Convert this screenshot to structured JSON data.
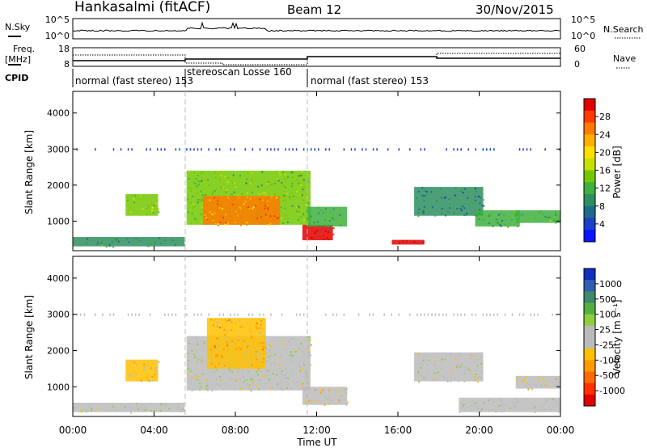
{
  "header": {
    "station": "Hankasalmi (fitACF)",
    "beam": "Beam 12",
    "date": "30/Nov/2015"
  },
  "noise_panel": {
    "left_label": "N.Sky",
    "left_ticks": [
      "10^5",
      "10^0"
    ],
    "right_label": "N.Search",
    "right_ticks": [
      "10^5",
      "10^0"
    ]
  },
  "freq_panel": {
    "left_label_top": "Freq.",
    "left_label_bottom": "[MHz]",
    "left_ticks": [
      "18",
      "8"
    ],
    "right_label": "Nave",
    "right_ticks": [
      "60",
      "0"
    ]
  },
  "cpid": {
    "label": "CPID",
    "segments": [
      {
        "text": "normal (fast stereo) 153",
        "start": 0,
        "end": 5.5
      },
      {
        "text": "stereoscan Losse 160",
        "start": 5.5,
        "end": 11.5
      },
      {
        "text": "normal (fast stereo) 153",
        "start": 11.5,
        "end": 24
      }
    ]
  },
  "power_colorbar": {
    "label": "Power [dB]",
    "ticks": [
      "28",
      "24",
      "20",
      "16",
      "12",
      "8",
      "4"
    ],
    "colors": [
      "#e00000",
      "#ff3a00",
      "#ff7a00",
      "#ffb000",
      "#ffe000",
      "#c8e000",
      "#74c800",
      "#40b040",
      "#2e8e60",
      "#1e6a8a",
      "#1c3ec8",
      "#0a14ff"
    ]
  },
  "velocity_colorbar": {
    "label": "Velocity [m s⁻¹]",
    "ticks": [
      "1000",
      "500",
      "100",
      "25",
      "-25",
      "-100",
      "-500",
      "-1000"
    ],
    "colors": [
      "#1030c0",
      "#2f5fb0",
      "#3f8a6a",
      "#55b040",
      "#8fce40",
      "#bbbbbb",
      "#bbbbbb",
      "#ffc000",
      "#ff9a00",
      "#ff6a00",
      "#ff3000",
      "#e00000"
    ]
  },
  "axes": {
    "ylabel": "Slant Range [km]",
    "xlabel": "Time UT",
    "xticks": [
      "00:00",
      "04:00",
      "08:00",
      "12:00",
      "16:00",
      "20:00",
      "00:00"
    ],
    "yticks": [
      "1000",
      "2000",
      "3000",
      "4000"
    ]
  },
  "chart_data": [
    {
      "type": "heatmap",
      "title": "Power [dB]",
      "xlabel": "",
      "ylabel": "Slant Range [km]",
      "xlim": [
        0,
        24
      ],
      "ylim": [
        180,
        4600
      ],
      "clim": [
        0,
        30
      ],
      "regions": [
        {
          "t0": 0.0,
          "t1": 5.5,
          "r0": 300,
          "r1": 560,
          "v": 9
        },
        {
          "t0": 2.6,
          "t1": 4.2,
          "r0": 1150,
          "r1": 1750,
          "v": 14
        },
        {
          "t0": 5.6,
          "t1": 11.7,
          "r0": 900,
          "r1": 2400,
          "v": 13
        },
        {
          "t0": 6.4,
          "t1": 10.2,
          "r0": 900,
          "r1": 1700,
          "v": 23
        },
        {
          "t0": 11.3,
          "t1": 12.8,
          "r0": 470,
          "r1": 900,
          "v": 29
        },
        {
          "t0": 11.5,
          "t1": 13.5,
          "r0": 850,
          "r1": 1400,
          "v": 11
        },
        {
          "t0": 15.7,
          "t1": 17.3,
          "r0": 350,
          "r1": 480,
          "v": 29
        },
        {
          "t0": 16.8,
          "t1": 20.2,
          "r0": 1150,
          "r1": 1950,
          "v": 8
        },
        {
          "t0": 19.8,
          "t1": 22.0,
          "r0": 850,
          "r1": 1300,
          "v": 10
        },
        {
          "t0": 21.8,
          "t1": 24.0,
          "r0": 950,
          "r1": 1300,
          "v": 12
        }
      ]
    },
    {
      "type": "heatmap",
      "title": "Velocity [m s-1]",
      "xlabel": "Time UT",
      "ylabel": "Slant Range [km]",
      "xlim": [
        0,
        24
      ],
      "ylim": [
        180,
        4600
      ],
      "clim": [
        -1000,
        1000
      ],
      "regions": [
        {
          "t0": 0.0,
          "t1": 5.5,
          "r0": 300,
          "r1": 560,
          "v": 80
        },
        {
          "t0": 2.6,
          "t1": 4.2,
          "r0": 1150,
          "r1": 1750,
          "v": -200
        },
        {
          "t0": 5.6,
          "t1": 11.7,
          "r0": 900,
          "r1": 2400,
          "v": 0
        },
        {
          "t0": 6.6,
          "t1": 9.5,
          "r0": 1500,
          "r1": 2900,
          "v": -300
        },
        {
          "t0": 11.3,
          "t1": 13.5,
          "r0": 500,
          "r1": 1000,
          "v": -150
        },
        {
          "t0": 16.8,
          "t1": 20.2,
          "r0": 1150,
          "r1": 1950,
          "v": 0
        },
        {
          "t0": 19.0,
          "t1": 24.0,
          "r0": 300,
          "r1": 700,
          "v": 80
        },
        {
          "t0": 21.8,
          "t1": 24.0,
          "r0": 950,
          "r1": 1300,
          "v": -100
        }
      ]
    }
  ]
}
